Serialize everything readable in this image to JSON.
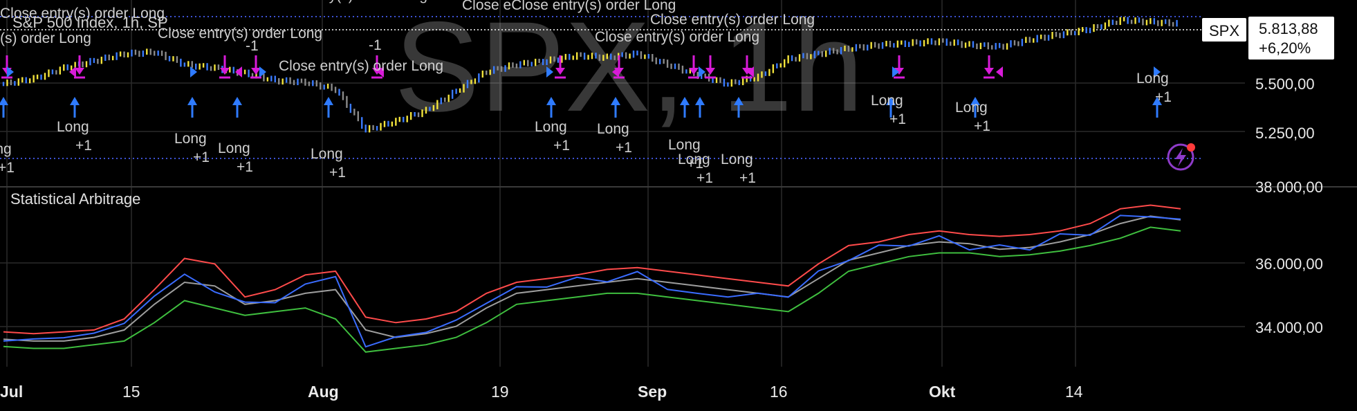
{
  "header": {
    "watermark": "SPX, 1h",
    "legend_title": "S&P 500 Index, 1h, SP"
  },
  "badges": {
    "symbol": "SPX",
    "price": "5.813,88",
    "change": "+6,20%"
  },
  "price_axis": [
    "5.500,00",
    "5.250,00"
  ],
  "indicator": {
    "title": "Statistical Arbitrage",
    "axis": [
      "38.000,00",
      "36.000,00",
      "34.000,00"
    ]
  },
  "x_axis": [
    {
      "label": "Jul",
      "bold": true
    },
    {
      "label": "15",
      "bold": false
    },
    {
      "label": "Aug",
      "bold": true
    },
    {
      "label": "19",
      "bold": false
    },
    {
      "label": "Sep",
      "bold": true
    },
    {
      "label": "16",
      "bold": false
    },
    {
      "label": "Okt",
      "bold": true
    },
    {
      "label": "14",
      "bold": false
    }
  ],
  "trade_labels": [
    "Close entry(s) order Long",
    "Close entry(s) order Long",
    "(s) order Long",
    "Close entry(s) order Long",
    "Close entry(s) order Long",
    "Close eClose entry(s) order Long",
    "Close entry(s) order Long",
    "Close entry(s) order Long",
    "-1",
    "-1",
    "-1"
  ],
  "long_labels": [
    {
      "label": "Long",
      "qty": "+1"
    },
    {
      "label": "Long",
      "qty": "+1"
    },
    {
      "label": "Long",
      "qty": "+1"
    },
    {
      "label": "Long",
      "qty": "+1"
    },
    {
      "label": "Long",
      "qty": "+1"
    },
    {
      "label": "Long",
      "qty": "+1"
    },
    {
      "label": "Long",
      "qty": "+1"
    },
    {
      "label": "Long",
      "qty": "+1"
    },
    {
      "label": "Long",
      "qty": "+1"
    },
    {
      "label": "Long",
      "qty": "+1"
    },
    {
      "label": "Long",
      "qty": "+1"
    },
    {
      "label": "Long",
      "qty": "+1"
    },
    {
      "label": "Long",
      "qty": "+1"
    }
  ],
  "colors": {
    "background": "#000000",
    "grid": "#2a2a2a",
    "dotted": "#3d52d5",
    "price_up": "#f2e33b",
    "price_blue": "#3a7bff",
    "close_marker": "#d81bd8",
    "long_marker": "#2f7bff",
    "upper_band": "#ff4b4b",
    "lower_band": "#3fbf3f",
    "mid_band": "#9e9e9e",
    "spread": "#3a6cff"
  },
  "chart_data": [
    {
      "type": "line",
      "name": "SPX 1h price",
      "ylim": [
        5050,
        5850
      ],
      "x": [
        "Jul 1",
        "Jul 3",
        "Jul 5",
        "Jul 9",
        "Jul 11",
        "Jul 15",
        "Jul 17",
        "Jul 19",
        "Jul 23",
        "Jul 25",
        "Jul 29",
        "Aug 1",
        "Aug 5",
        "Aug 7",
        "Aug 9",
        "Aug 13",
        "Aug 15",
        "Aug 19",
        "Aug 21",
        "Aug 23",
        "Aug 27",
        "Aug 29",
        "Sep 3",
        "Sep 5",
        "Sep 9",
        "Sep 11",
        "Sep 13",
        "Sep 17",
        "Sep 19",
        "Sep 23",
        "Sep 25",
        "Sep 27",
        "Oct 1",
        "Oct 3",
        "Oct 7",
        "Oct 9",
        "Oct 11",
        "Oct 15",
        "Oct 17",
        "Oct 21"
      ],
      "y": [
        5470,
        5500,
        5560,
        5600,
        5640,
        5650,
        5580,
        5560,
        5530,
        5490,
        5480,
        5440,
        5210,
        5260,
        5320,
        5430,
        5540,
        5580,
        5600,
        5630,
        5620,
        5640,
        5580,
        5520,
        5470,
        5510,
        5610,
        5640,
        5670,
        5690,
        5700,
        5710,
        5690,
        5680,
        5720,
        5750,
        5780,
        5830,
        5820,
        5810
      ]
    },
    {
      "type": "line",
      "name": "Statistical Arbitrage",
      "ylim": [
        33300,
        38200
      ],
      "x": [
        "Jul 1",
        "Jul 3",
        "Jul 5",
        "Jul 9",
        "Jul 11",
        "Jul 15",
        "Jul 17",
        "Jul 19",
        "Jul 23",
        "Jul 25",
        "Jul 29",
        "Aug 1",
        "Aug 5",
        "Aug 7",
        "Aug 9",
        "Aug 13",
        "Aug 15",
        "Aug 19",
        "Aug 21",
        "Aug 23",
        "Aug 27",
        "Aug 29",
        "Sep 3",
        "Sep 5",
        "Sep 9",
        "Sep 11",
        "Sep 13",
        "Sep 17",
        "Sep 19",
        "Sep 23",
        "Sep 25",
        "Sep 27",
        "Oct 1",
        "Oct 3",
        "Oct 7",
        "Oct 9",
        "Oct 11",
        "Oct 15",
        "Oct 17",
        "Oct 21"
      ],
      "series": [
        {
          "name": "upper",
          "values": [
            34250,
            34200,
            34250,
            34300,
            34600,
            35400,
            36250,
            36100,
            35200,
            35400,
            35800,
            35900,
            34650,
            34500,
            34600,
            34800,
            35300,
            35600,
            35700,
            35800,
            35950,
            36000,
            35900,
            35800,
            35700,
            35600,
            35500,
            36100,
            36600,
            36700,
            36900,
            37000,
            36900,
            36850,
            36900,
            37000,
            37200,
            37600,
            37700,
            37600
          ]
        },
        {
          "name": "middle",
          "values": [
            34050,
            34000,
            34000,
            34100,
            34300,
            35000,
            35600,
            35500,
            35000,
            35100,
            35300,
            35400,
            34300,
            34100,
            34200,
            34400,
            34900,
            35300,
            35400,
            35500,
            35600,
            35700,
            35600,
            35500,
            35400,
            35300,
            35200,
            35700,
            36200,
            36400,
            36600,
            36700,
            36650,
            36500,
            36550,
            36700,
            36900,
            37200,
            37400,
            37300
          ]
        },
        {
          "name": "lower",
          "values": [
            33850,
            33800,
            33800,
            33900,
            34000,
            34500,
            35100,
            34900,
            34700,
            34800,
            34900,
            34600,
            33700,
            33800,
            33900,
            34100,
            34500,
            35000,
            35100,
            35200,
            35300,
            35300,
            35200,
            35100,
            35000,
            34900,
            34800,
            35300,
            35900,
            36100,
            36300,
            36400,
            36400,
            36300,
            36350,
            36450,
            36600,
            36800,
            37100,
            37000
          ]
        },
        {
          "name": "spread",
          "values": [
            34000,
            34050,
            34100,
            34200,
            34500,
            35200,
            35850,
            35300,
            35100,
            35000,
            35600,
            35700,
            33900,
            34050,
            34300,
            34500,
            35100,
            35400,
            35550,
            35650,
            35700,
            35800,
            35500,
            35200,
            35300,
            35200,
            35300,
            35800,
            36300,
            36500,
            36700,
            36750,
            36600,
            36500,
            36600,
            36800,
            37000,
            37300,
            37500,
            37200
          ]
        }
      ]
    }
  ]
}
